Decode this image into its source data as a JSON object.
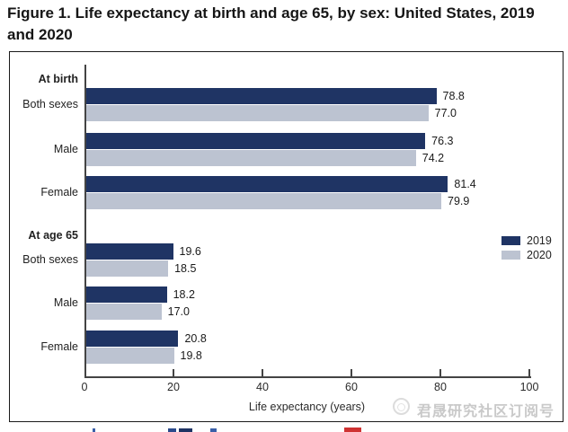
{
  "title": "Figure 1. Life expectancy at birth and age 65, by sex: United States, 2019 and 2020",
  "chart_data": {
    "type": "bar",
    "orientation": "horizontal",
    "title": "Figure 1. Life expectancy at birth and age 65, by sex: United States, 2019 and 2020",
    "xlabel": "Life expectancy (years)",
    "xlim": [
      0,
      100
    ],
    "xticks": [
      0,
      20,
      40,
      60,
      80,
      100
    ],
    "grid": false,
    "legend_position": "right-middle",
    "group_labels": [
      "At birth",
      "At age 65"
    ],
    "categories": [
      "Both sexes",
      "Male",
      "Female",
      "Both sexes",
      "Male",
      "Female"
    ],
    "category_group_index": [
      0,
      0,
      0,
      1,
      1,
      1
    ],
    "series": [
      {
        "name": "2019",
        "color": "#1f3464",
        "values": [
          78.8,
          76.3,
          81.4,
          19.6,
          18.2,
          20.8
        ]
      },
      {
        "name": "2020",
        "color": "#bcc3d1",
        "values": [
          77.0,
          74.2,
          79.9,
          18.5,
          17.0,
          19.8
        ]
      }
    ],
    "value_label_decimals": 1
  },
  "watermark": {
    "text": "君晟研究社区订阅号"
  }
}
